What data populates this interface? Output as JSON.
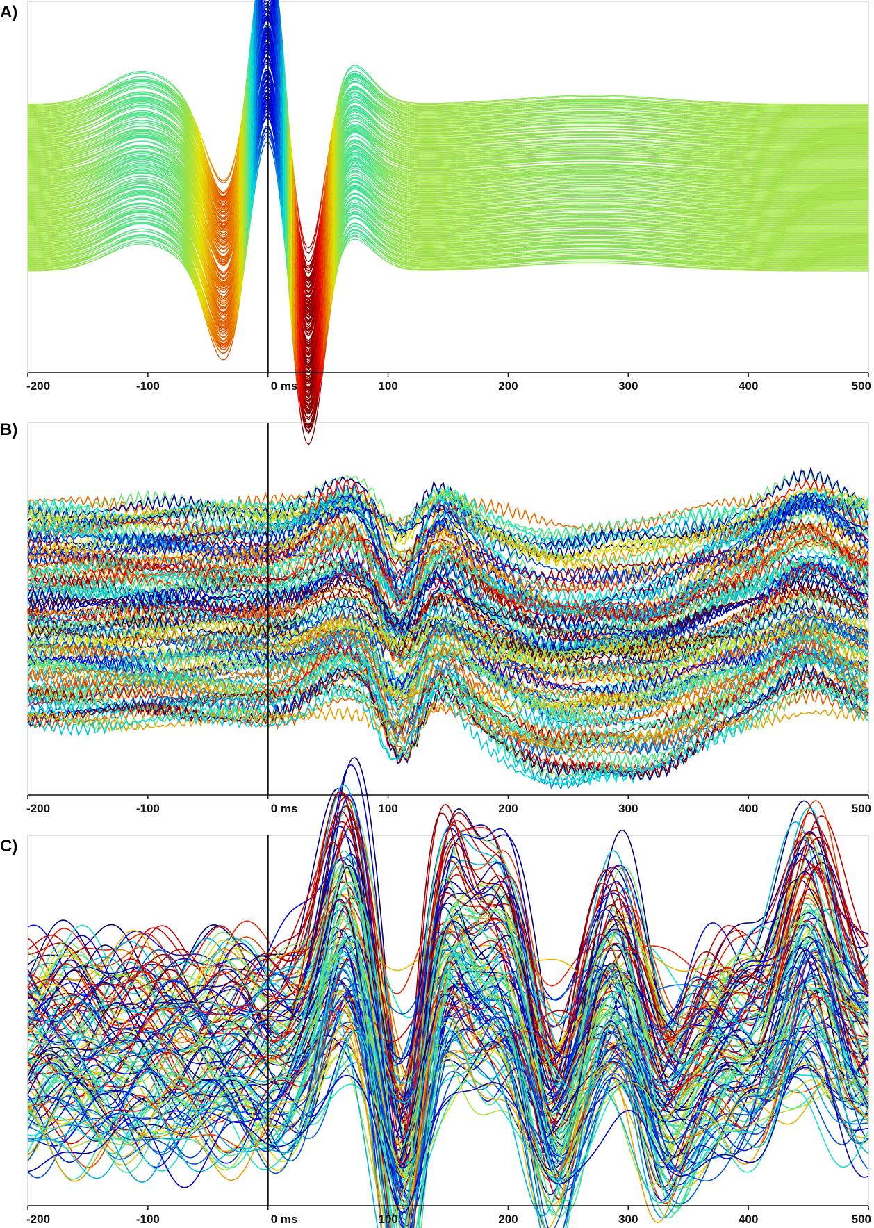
{
  "chart_data": [
    {
      "type": "line",
      "panel_label": "A)",
      "x_domain": [
        -200,
        500
      ],
      "zero_line_at": 0,
      "xticks": [
        -200,
        -100,
        0,
        100,
        200,
        300,
        400,
        500
      ],
      "xtick_labels": [
        "-200",
        "-100",
        "0 ms",
        "100",
        "200",
        "300",
        "400",
        "500"
      ],
      "n_traces": 160,
      "line_count_note": "stacked single-trial traces, sorted",
      "colormap": "jet",
      "shape": "synthetic-sorted",
      "features": [
        {
          "t": -105,
          "amp": 0.18,
          "w": 28
        },
        {
          "t": -35,
          "amp": -0.55,
          "w": 16
        },
        {
          "t": 0,
          "amp": 1.0,
          "w": 14
        },
        {
          "t": 33,
          "amp": -1.1,
          "w": 14
        },
        {
          "t": 65,
          "amp": 0.25,
          "w": 20
        },
        {
          "t": 270,
          "amp": 0.05,
          "w": 60
        }
      ]
    },
    {
      "type": "line",
      "panel_label": "B)",
      "x_domain": [
        -200,
        500
      ],
      "zero_line_at": 0,
      "xticks": [
        -200,
        -100,
        0,
        100,
        200,
        300,
        400,
        500
      ],
      "xtick_labels": [
        "-200",
        "-100",
        "0 ms",
        "100",
        "200",
        "300",
        "400",
        "500"
      ],
      "n_traces": 110,
      "colormap": "jet",
      "shape": "noisy",
      "features": [
        {
          "t": 65,
          "amp": 0.35,
          "w": 25
        },
        {
          "t": 110,
          "amp": -0.55,
          "w": 14
        },
        {
          "t": 145,
          "amp": 0.3,
          "w": 18
        },
        {
          "t": 240,
          "amp": -0.55,
          "w": 40
        },
        {
          "t": 320,
          "amp": -0.45,
          "w": 35
        },
        {
          "t": 450,
          "amp": 0.35,
          "w": 25
        }
      ]
    },
    {
      "type": "line",
      "panel_label": "C)",
      "x_domain": [
        -200,
        500
      ],
      "zero_line_at": 0,
      "xticks": [
        -200,
        -100,
        0,
        100,
        200,
        300,
        400,
        500
      ],
      "xtick_labels": [
        "-200",
        "-100",
        "0 ms",
        "100",
        "200",
        "300",
        "400",
        "500"
      ],
      "n_traces": 120,
      "colormap": "jet",
      "shape": "smooth",
      "features": [
        {
          "t": 65,
          "amp": 0.95,
          "w": 18
        },
        {
          "t": 112,
          "amp": -1.05,
          "w": 14
        },
        {
          "t": 150,
          "amp": 0.75,
          "w": 18
        },
        {
          "t": 195,
          "amp": 0.55,
          "w": 18
        },
        {
          "t": 240,
          "amp": -0.6,
          "w": 16
        },
        {
          "t": 290,
          "amp": 0.55,
          "w": 20
        },
        {
          "t": 330,
          "amp": -0.45,
          "w": 18
        },
        {
          "t": 450,
          "amp": 0.75,
          "w": 20
        }
      ]
    }
  ]
}
